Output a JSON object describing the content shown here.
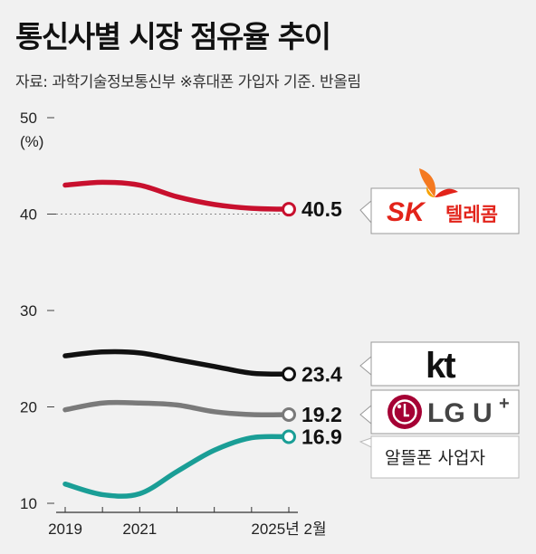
{
  "chart_data": {
    "type": "line",
    "title": "통신사별 시장 점유율 추이",
    "subtitle": "자료: 과학기술정보통신부 ※휴대폰 가입자 기준. 반올림",
    "ylabel": "(%)",
    "ylim": [
      10,
      50
    ],
    "yticks": [
      10,
      20,
      30,
      40,
      50
    ],
    "x_tick_labels": [
      "2019",
      "2021",
      "2025년 2월"
    ],
    "x": [
      0,
      1,
      2,
      3,
      4,
      5,
      6
    ],
    "series": [
      {
        "name": "SK 텔레콤",
        "color": "#c8102e",
        "values": [
          43.0,
          43.3,
          43.0,
          41.8,
          41.0,
          40.6,
          40.5
        ],
        "end_label": "40.5"
      },
      {
        "name": "kt",
        "color": "#111111",
        "values": [
          25.3,
          25.7,
          25.6,
          24.9,
          24.2,
          23.5,
          23.4
        ],
        "end_label": "23.4"
      },
      {
        "name": "LG U+",
        "color": "#7a7a7a",
        "values": [
          19.7,
          20.4,
          20.4,
          20.2,
          19.5,
          19.2,
          19.2
        ],
        "end_label": "19.2"
      },
      {
        "name": "알뜰폰 사업자",
        "color": "#1a9e96",
        "values": [
          12.0,
          10.9,
          11.0,
          13.3,
          15.5,
          16.8,
          16.9
        ],
        "end_label": "16.9"
      }
    ],
    "reference_line": 40,
    "grid": false,
    "legend": "right"
  },
  "legend_labels": {
    "sk_text": "SK",
    "sk_sub": "텔레콤",
    "kt": "kt",
    "lgu": "LG U",
    "lgu_plus": "+",
    "mvno": "알뜰폰 사업자"
  },
  "colors": {
    "sk_red": "#e2231a",
    "sk_orange": "#f47920",
    "lg_red": "#a50034",
    "mvno_border": "#9a9a9a"
  }
}
